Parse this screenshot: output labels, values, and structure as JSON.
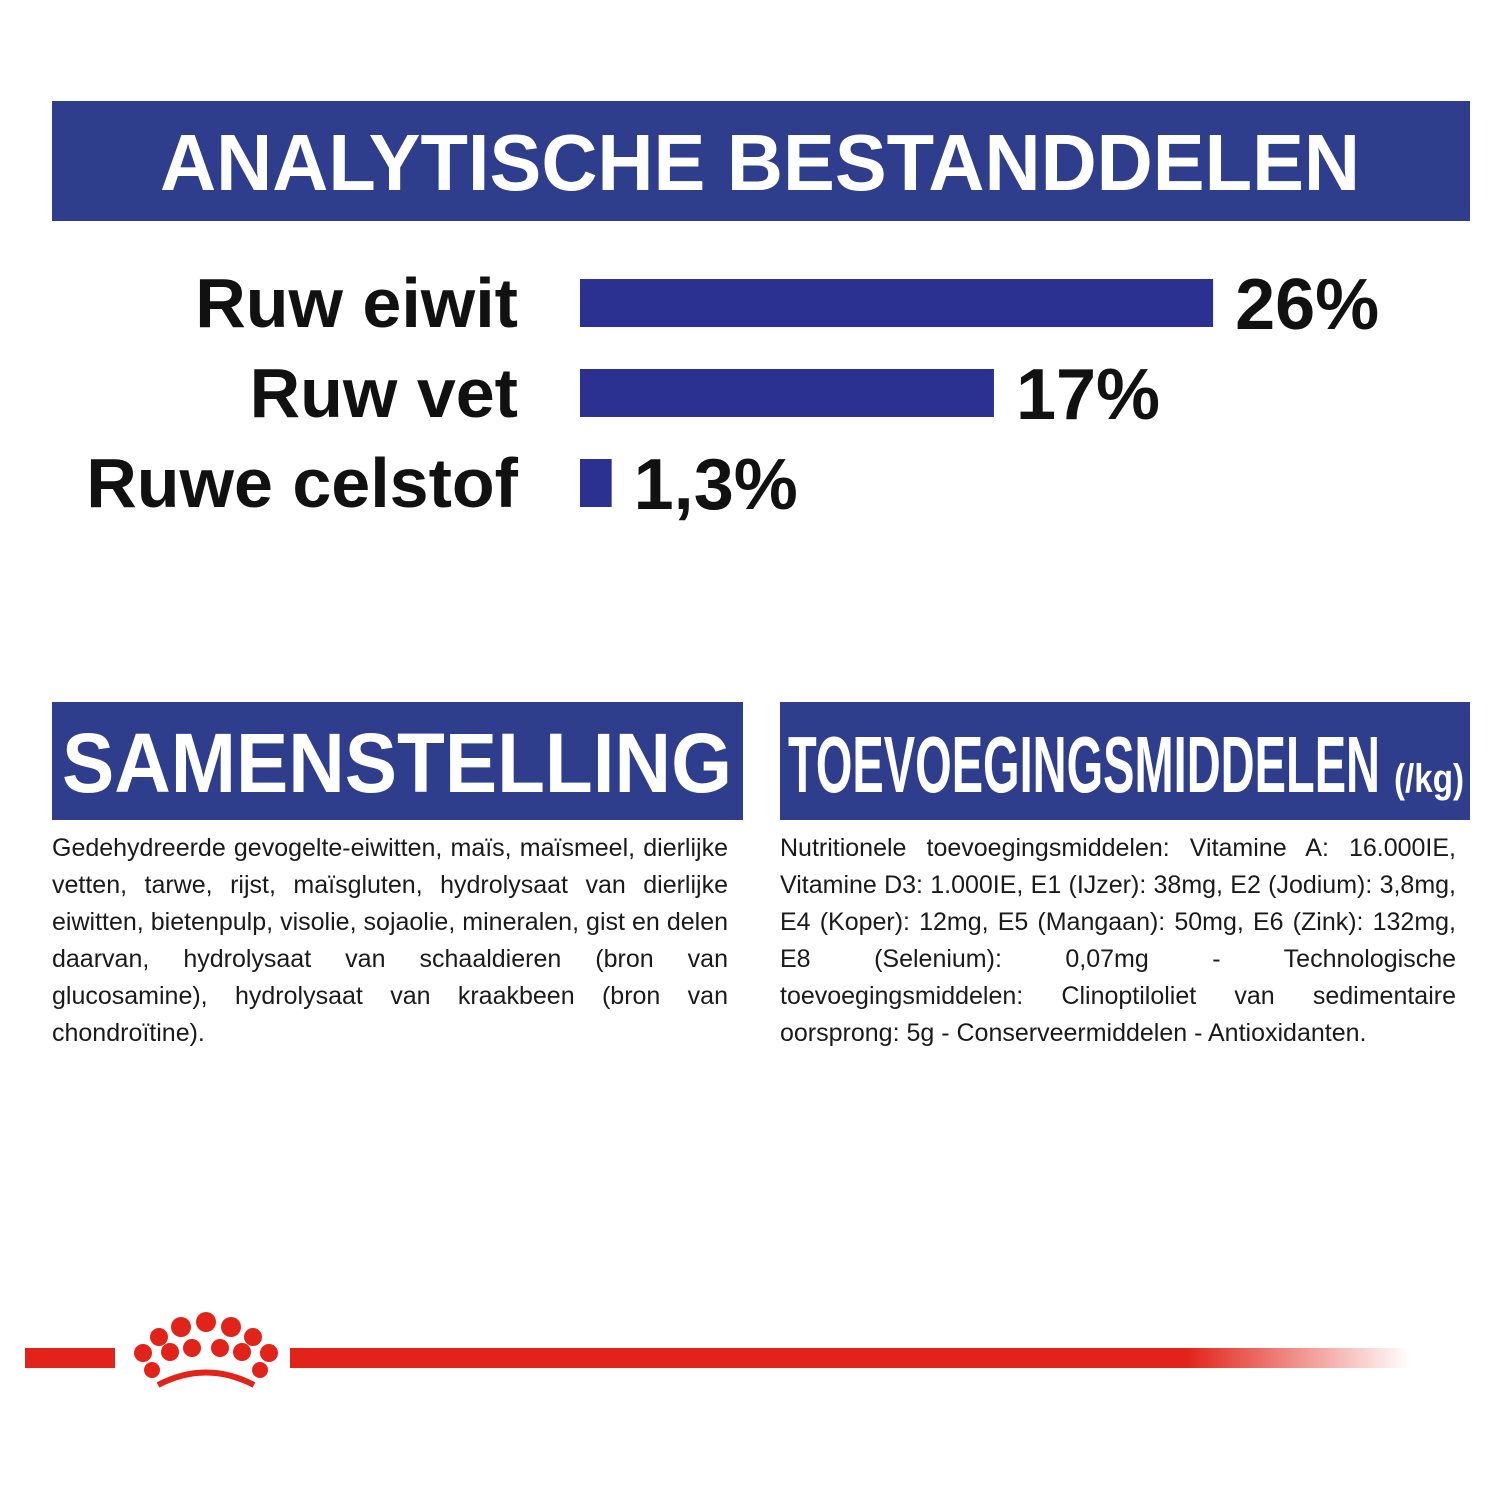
{
  "chart_data": {
    "type": "bar",
    "title": "ANALYTISCHE BESTANDDELEN",
    "categories": [
      "Ruw eiwit",
      "Ruw vet",
      "Ruwe celstof"
    ],
    "values": [
      26,
      17,
      1.3
    ],
    "value_labels": [
      "26%",
      "17%",
      "1,3%"
    ],
    "color": "#2b3190"
  },
  "composition": {
    "title": "SAMENSTELLING",
    "text": "Gedehydreerde gevogelte-eiwitten, maïs, maïsmeel, dierlijke vetten, tarwe, rijst, maïsgluten, hydrolysaat van dierlijke eiwitten, bietenpulp, visolie, sojaolie, mineralen, gist en delen daarvan, hydrolysaat van schaaldieren (bron van glucosamine), hydrolysaat van kraakbeen (bron van chondroïtine)."
  },
  "additives": {
    "title": "TOEVOEGINGSMIDDELEN",
    "unit": "(/kg)",
    "text": "Nutritionele toevoegingsmiddelen: Vitamine A: 16.000IE, Vitamine D3: 1.000IE, E1 (IJzer): 38mg, E2 (Jodium): 3,8mg, E4 (Koper): 12mg, E5 (Mangaan): 50mg, E6 (Zink): 132mg, E8 (Selenium): 0,07mg - Technologische toevoegingsmiddelen: Clinoptiloliet van sedimentaire oorsprong: 5g - Conserveermiddelen - Antioxidanten."
  }
}
